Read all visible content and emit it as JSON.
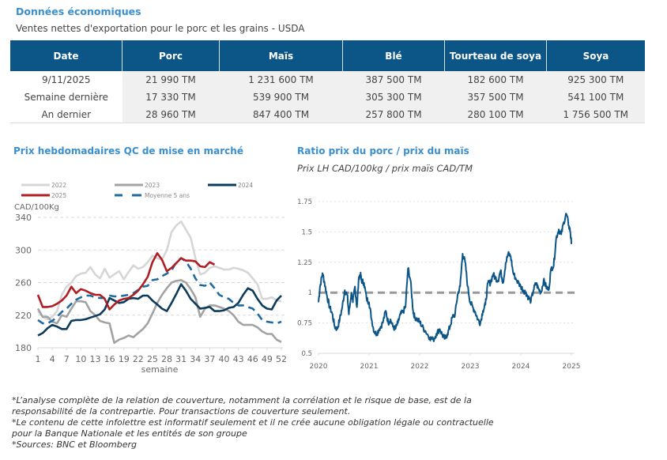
{
  "header": {
    "title": "Données économiques",
    "subtitle": "Ventes nettes d'exportation pour le porc et les grains - USDA"
  },
  "export_table": {
    "columns": [
      "Date",
      "Porc",
      "Maïs",
      "Blé",
      "Tourteau de soya",
      "Soya"
    ],
    "rows": [
      [
        "9/11/2025",
        "21 990 TM",
        "1 231 600 TM",
        "387 500 TM",
        "182 600 TM",
        "925 300 TM"
      ],
      [
        "Semaine dernière",
        "17 330 TM",
        "539 900 TM",
        "305 300 TM",
        "357 500 TM",
        "541 100 TM"
      ],
      [
        "An dernier",
        "28 960 TM",
        "847 400 TM",
        "257 800 TM",
        "280 100 TM",
        "1 756 500 TM"
      ]
    ],
    "header_color": "#0b5587"
  },
  "chart_data": [
    {
      "type": "line",
      "title": "Prix hebdomadaires QC de mise en marché",
      "xlabel": "semaine",
      "ylabel": "CAD/100Kg",
      "ylim": [
        180,
        340
      ],
      "yticks": [
        180,
        220,
        260,
        300,
        340
      ],
      "xlim": [
        1,
        52
      ],
      "xticks": [
        1,
        4,
        7,
        10,
        13,
        16,
        19,
        22,
        25,
        28,
        31,
        34,
        37,
        40,
        43,
        46,
        49,
        52
      ],
      "grid": "horizontal dashed",
      "legend_position": "top",
      "series": [
        {
          "name": "2022",
          "color": "#d6d6d6",
          "dash": false,
          "values": [
            225,
            218,
            215,
            218,
            225,
            245,
            255,
            260,
            268,
            271,
            272,
            279,
            270,
            265,
            277,
            266,
            270,
            274,
            264,
            273,
            281,
            277,
            279,
            285,
            293,
            290,
            288,
            300,
            322,
            330,
            335,
            325,
            315,
            290,
            270,
            272,
            278,
            280,
            278,
            276,
            276,
            278,
            277,
            275,
            272,
            265,
            258,
            240,
            240,
            242,
            238,
            237
          ]
        },
        {
          "name": "2023",
          "color": "#a3a3a3",
          "dash": false,
          "values": [
            228,
            218,
            218,
            212,
            210,
            220,
            218,
            228,
            237,
            237,
            236,
            225,
            220,
            213,
            211,
            210,
            186,
            190,
            192,
            195,
            193,
            198,
            203,
            210,
            222,
            235,
            245,
            253,
            260,
            262,
            263,
            260,
            252,
            242,
            218,
            228,
            232,
            232,
            230,
            228,
            225,
            220,
            212,
            208,
            208,
            208,
            205,
            200,
            197,
            197,
            190,
            187
          ]
        },
        {
          "name": "2024",
          "color": "#0d3b5c",
          "dash": false,
          "values": [
            195,
            198,
            204,
            208,
            206,
            203,
            203,
            213,
            214,
            214,
            215,
            217,
            219,
            221,
            227,
            241,
            238,
            235,
            236,
            240,
            241,
            240,
            244,
            244,
            238,
            233,
            228,
            225,
            235,
            246,
            258,
            250,
            240,
            234,
            228,
            229,
            230,
            225,
            225,
            226,
            229,
            230,
            235,
            245,
            253,
            250,
            240,
            232,
            228,
            227,
            238,
            244
          ]
        },
        {
          "name": "2025",
          "color": "#b01e23",
          "dash": false,
          "values": [
            245,
            230,
            230,
            231,
            234,
            238,
            244,
            255,
            247,
            252,
            250,
            247,
            245,
            245,
            240,
            227,
            233,
            238,
            240,
            241,
            245,
            250,
            258,
            267,
            285,
            296,
            288,
            274,
            278,
            284,
            290,
            287,
            287,
            286,
            280,
            279,
            285,
            282
          ]
        },
        {
          "name": "Moyenne 5 ans",
          "color": "#1f6aa0",
          "dash": true,
          "values": [
            214,
            210,
            210,
            213,
            218,
            224,
            228,
            234,
            239,
            242,
            244,
            244,
            242,
            241,
            241,
            244,
            243,
            243,
            244,
            245,
            247,
            251,
            255,
            256,
            263,
            264,
            268,
            271,
            275,
            285,
            290,
            286,
            277,
            265,
            257,
            256,
            260,
            253,
            245,
            242,
            240,
            235,
            232,
            232,
            230,
            228,
            222,
            214,
            212,
            211,
            210,
            212
          ]
        }
      ]
    },
    {
      "type": "line",
      "title": "Ratio prix du porc / prix du maïs",
      "subtitle": "Prix LH CAD/100kg / prix maïs CAD/TM",
      "xlabel": "",
      "ylabel": "",
      "ylim": [
        0.5,
        1.75
      ],
      "yticks": [
        "0.5",
        "0.75",
        "1",
        "1.25",
        "1.5",
        "1.75"
      ],
      "xlim": [
        2020,
        2025
      ],
      "xticks": [
        "2020",
        "2021",
        "2022",
        "2023",
        "2024",
        "2025"
      ],
      "grid": "horizontal dotted",
      "reference_line": {
        "value": 1,
        "color": "#999999",
        "dash": true
      },
      "series": [
        {
          "name": "Ratio",
          "color": "#0b5587",
          "x": [
            2020.0,
            2020.03,
            2020.08,
            2020.12,
            2020.17,
            2020.22,
            2020.27,
            2020.32,
            2020.37,
            2020.42,
            2020.47,
            2020.52,
            2020.57,
            2020.6,
            2020.65,
            2020.68,
            2020.72,
            2020.76,
            2020.8,
            2020.83,
            2020.85,
            2020.9,
            2020.95,
            2021.0,
            2021.05,
            2021.1,
            2021.15,
            2021.2,
            2021.27,
            2021.33,
            2021.38,
            2021.42,
            2021.47,
            2021.52,
            2021.57,
            2021.62,
            2021.67,
            2021.72,
            2021.77,
            2021.82,
            2021.87,
            2021.9,
            2021.95,
            2022.0,
            2022.05,
            2022.12,
            2022.2,
            2022.27,
            2022.33,
            2022.4,
            2022.45,
            2022.5,
            2022.55,
            2022.6,
            2022.65,
            2022.7,
            2022.75,
            2022.8,
            2022.85,
            2022.9,
            2022.95,
            2023.0,
            2023.05,
            2023.1,
            2023.15,
            2023.2,
            2023.25,
            2023.3,
            2023.35,
            2023.4,
            2023.45,
            2023.5,
            2023.55,
            2023.6,
            2023.65,
            2023.7,
            2023.75,
            2023.8,
            2023.85,
            2023.92,
            2024.0,
            2024.05,
            2024.1,
            2024.15,
            2024.2,
            2024.25,
            2024.3,
            2024.35,
            2024.4,
            2024.45,
            2024.5,
            2024.55,
            2024.6,
            2024.65,
            2024.7,
            2024.75,
            2024.8,
            2024.85,
            2024.9,
            2024.95,
            2024.98,
            2025.0
          ],
          "y": [
            0.92,
            1.05,
            1.16,
            1.08,
            0.97,
            0.88,
            0.83,
            0.72,
            0.7,
            0.78,
            0.88,
            1.02,
            0.98,
            0.82,
            1.0,
            0.92,
            1.05,
            0.88,
            1.13,
            1.15,
            1.1,
            1.08,
            0.95,
            0.92,
            0.78,
            0.68,
            0.66,
            0.7,
            0.75,
            0.85,
            0.75,
            0.78,
            0.72,
            0.7,
            0.75,
            0.82,
            0.84,
            0.88,
            1.2,
            1.1,
            0.85,
            0.8,
            0.78,
            0.76,
            0.72,
            0.68,
            0.63,
            0.61,
            0.66,
            0.7,
            0.65,
            0.62,
            0.66,
            0.72,
            0.8,
            0.82,
            0.98,
            1.05,
            1.32,
            1.25,
            1.05,
            0.92,
            0.88,
            0.84,
            0.78,
            0.75,
            0.85,
            0.9,
            1.08,
            1.08,
            1.15,
            1.12,
            1.1,
            1.18,
            1.08,
            1.24,
            1.32,
            1.3,
            1.16,
            1.1,
            1.05,
            1.02,
            1.0,
            0.96,
            0.93,
            1.02,
            1.08,
            1.03,
            1.0,
            1.1,
            1.05,
            1.02,
            1.2,
            1.22,
            1.45,
            1.52,
            1.48,
            1.58,
            1.65,
            1.55,
            1.5,
            1.4
          ]
        }
      ]
    }
  ],
  "notes": [
    "*L’analyse complète de la relation de couverture, notamment la corrélation et le risque de base, est de la",
    "responsabilité de la contrepartie. Pour transactions de couverture seulement.",
    "*Le contenu de cette infolettre est informatif seulement et il ne crée aucune obligation légale ou contractuelle",
    "pour la Banque Nationale et les entités de son groupe",
    "*Sources: BNC et Bloomberg"
  ]
}
